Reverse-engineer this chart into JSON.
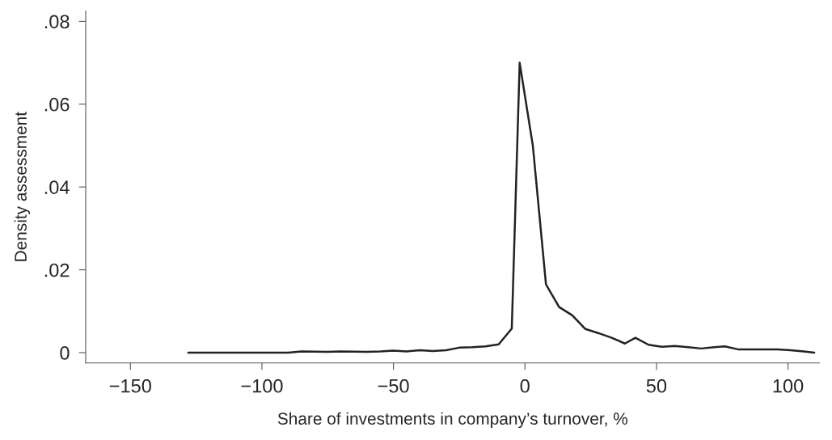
{
  "chart_data": {
    "type": "line",
    "xlabel": "Share of investments in company’s turnover, %",
    "ylabel": "Density assessment",
    "x": [
      -128,
      -110,
      -90,
      -85,
      -75,
      -70,
      -60,
      -55,
      -50,
      -45,
      -40,
      -35,
      -30,
      -25,
      -20,
      -15,
      -10,
      -5,
      -2,
      3,
      8,
      13,
      18,
      23,
      28,
      33,
      38,
      42,
      47,
      52,
      57,
      62,
      67,
      72,
      76,
      81,
      86,
      91,
      96,
      101,
      106,
      110
    ],
    "series": [
      {
        "color": "#222222",
        "values": [
          0,
          0,
          0,
          0.0003,
          0.0002,
          0.0003,
          0.0002,
          0.0003,
          0.0005,
          0.0003,
          0.0006,
          0.0004,
          0.0006,
          0.0012,
          0.0013,
          0.0015,
          0.002,
          0.0058,
          0.07,
          0.05,
          0.0165,
          0.011,
          0.009,
          0.0057,
          0.0047,
          0.0036,
          0.0022,
          0.0036,
          0.0019,
          0.0014,
          0.0016,
          0.0013,
          0.001,
          0.0013,
          0.0015,
          0.0008,
          0.0008,
          0.0008,
          0.0008,
          0.0006,
          0.0003,
          0
        ]
      }
    ],
    "xlim": [
      -167,
      112
    ],
    "ylim": [
      -0.0025,
      0.0825
    ],
    "xticks": [
      {
        "value": -150,
        "label": "−150"
      },
      {
        "value": -100,
        "label": "−100"
      },
      {
        "value": -50,
        "label": "−50"
      },
      0,
      50,
      100
    ],
    "yticks": [
      0,
      {
        "value": 0.02,
        "label": ".02"
      },
      {
        "value": 0.04,
        "label": ".04"
      },
      {
        "value": 0.06,
        "label": ".06"
      },
      {
        "value": 0.08,
        "label": ".08"
      }
    ],
    "grid": false
  }
}
